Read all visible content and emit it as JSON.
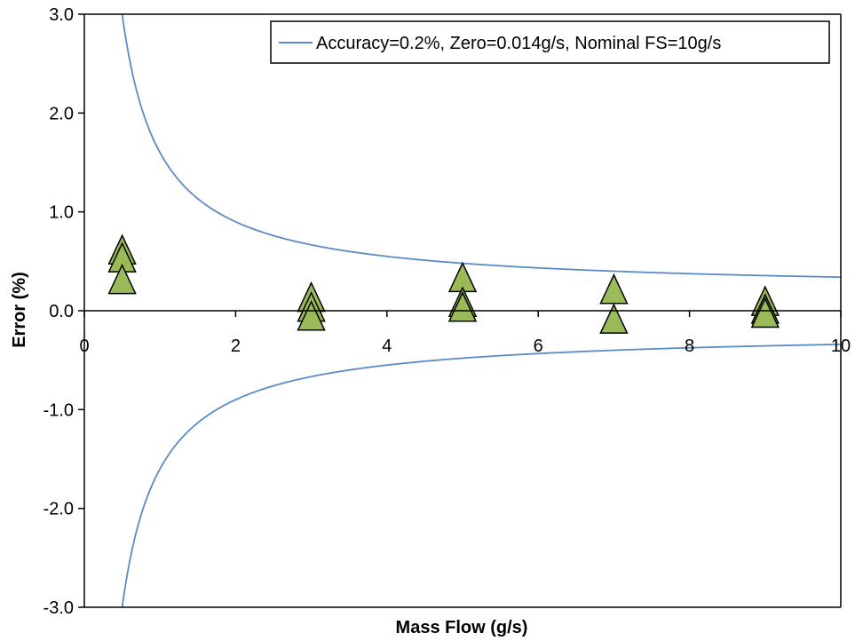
{
  "chart_data": {
    "type": "scatter",
    "title": "",
    "xlabel": "Mass Flow (g/s)",
    "ylabel": "Error (%)",
    "xlim": [
      0,
      10
    ],
    "ylim": [
      -3.0,
      3.0
    ],
    "x_ticks": [
      0,
      2,
      4,
      6,
      8,
      10
    ],
    "x_tick_labels": [
      "0",
      "2",
      "4",
      "6",
      "8",
      "10"
    ],
    "y_ticks": [
      -3.0,
      -2.0,
      -1.0,
      0.0,
      1.0,
      2.0,
      3.0
    ],
    "y_tick_labels": [
      "-3.0",
      "-2.0",
      "-1.0",
      "0.0",
      "1.0",
      "2.0",
      "3.0"
    ],
    "grid": false,
    "legend_position": "top-right",
    "series": [
      {
        "name": "Accuracy=0.2%, Zero=0.014g/s, Nominal FS=10g/s",
        "kind": "line",
        "color": "#5b8bc5",
        "accuracy_percent": 0.2,
        "zero_g_per_s": 0.014,
        "nominal_fs_g_per_s": 10,
        "x_start": 0.5,
        "x_end": 10
      },
      {
        "kind": "marker",
        "marker": "triangle",
        "color": "#9bbb59",
        "edge_color": "#000000",
        "points": [
          {
            "x": 0.5,
            "y": 0.6
          },
          {
            "x": 0.5,
            "y": 0.52
          },
          {
            "x": 0.5,
            "y": 0.3
          },
          {
            "x": 3.0,
            "y": 0.12
          },
          {
            "x": 3.0,
            "y": 0.02
          },
          {
            "x": 3.0,
            "y": -0.07
          },
          {
            "x": 5.0,
            "y": 0.32
          },
          {
            "x": 5.0,
            "y": 0.07
          },
          {
            "x": 5.0,
            "y": 0.02
          },
          {
            "x": 7.0,
            "y": 0.2
          },
          {
            "x": 7.0,
            "y": -0.1
          },
          {
            "x": 9.0,
            "y": 0.08
          },
          {
            "x": 9.0,
            "y": 0.0
          },
          {
            "x": 9.0,
            "y": -0.04
          }
        ]
      }
    ]
  }
}
